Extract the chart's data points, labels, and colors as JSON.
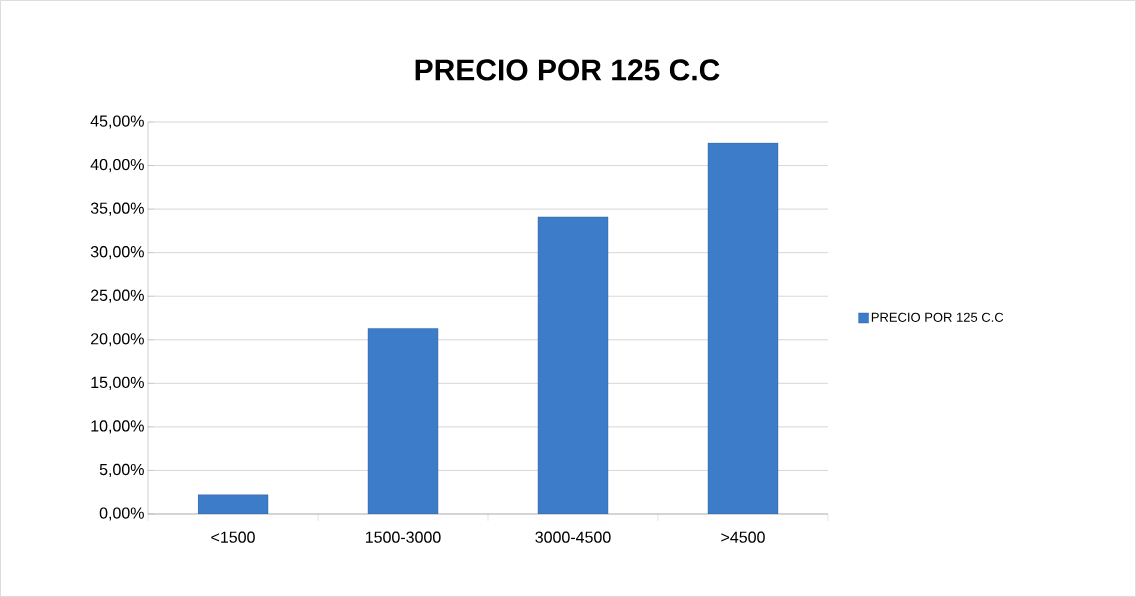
{
  "chart_data": {
    "type": "bar",
    "title": "PRECIO POR 125 C.C",
    "categories": [
      "<1500",
      "1500-3000",
      "3000-4500",
      ">4500"
    ],
    "series": [
      {
        "name": "PRECIO POR 125 C.C",
        "color": "#3d7cc9",
        "values": [
          2.2,
          21.3,
          34.1,
          42.6
        ]
      }
    ],
    "ylim": [
      0,
      45
    ],
    "yticks": [
      {
        "value": 0,
        "label": "0,00%"
      },
      {
        "value": 5,
        "label": "5,00%"
      },
      {
        "value": 10,
        "label": "10,00%"
      },
      {
        "value": 15,
        "label": "15,00%"
      },
      {
        "value": 20,
        "label": "20,00%"
      },
      {
        "value": 25,
        "label": "25,00%"
      },
      {
        "value": 30,
        "label": "30,00%"
      },
      {
        "value": 35,
        "label": "35,00%"
      },
      {
        "value": 40,
        "label": "40,00%"
      },
      {
        "value": 45,
        "label": "45,00%"
      }
    ],
    "grid": "y",
    "legend": "right"
  }
}
